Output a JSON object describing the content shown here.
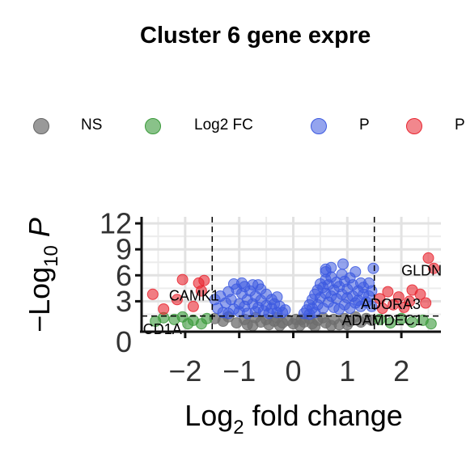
{
  "chart_data": {
    "type": "scatter",
    "title": "Cluster 6 gene expre",
    "xlabel": "Log2 fold change",
    "ylabel": "-Log10 P",
    "xlim": [
      -2.8,
      2.7
    ],
    "ylim": [
      0,
      13
    ],
    "x_ticks": [
      -2,
      -1,
      0,
      1,
      2
    ],
    "x_tick_labels": [
      "-2",
      "-1",
      "0",
      "1",
      "2"
    ],
    "y_ticks": [
      3,
      6,
      9,
      12
    ],
    "y_tick_labels": [
      "3",
      "6",
      "9",
      "12"
    ],
    "y_extra_label": "0",
    "grid": true,
    "legend_position": "top",
    "fc_cutoff": 1.5,
    "p_cutoff": 1.3,
    "legend": [
      {
        "key": "NS",
        "label": "NS",
        "color": "#6e6e6e"
      },
      {
        "key": "FC",
        "label": "Log2 FC",
        "color": "#3a9a3a"
      },
      {
        "key": "P",
        "label": "P",
        "color": "#3d5ae0"
      },
      {
        "key": "PFC",
        "label": "P",
        "color": "#e8252f"
      }
    ],
    "series": [
      {
        "key": "NS",
        "color": "#6e6e6e",
        "points": [
          [
            -1.45,
            1.0
          ],
          [
            -1.3,
            0.7
          ],
          [
            -1.2,
            1.2
          ],
          [
            -1.05,
            0.5
          ],
          [
            -0.9,
            0.9
          ],
          [
            -0.85,
            0.3
          ],
          [
            -0.7,
            1.1
          ],
          [
            -0.6,
            0.6
          ],
          [
            -0.5,
            0.9
          ],
          [
            -0.45,
            0.3
          ],
          [
            -0.35,
            0.7
          ],
          [
            -0.3,
            1.1
          ],
          [
            -0.2,
            0.5
          ],
          [
            -0.1,
            0.8
          ],
          [
            0.0,
            0.4
          ],
          [
            0.05,
            0.9
          ],
          [
            0.12,
            0.2
          ],
          [
            0.2,
            0.6
          ],
          [
            0.3,
            1.0
          ],
          [
            0.35,
            0.4
          ],
          [
            0.45,
            0.8
          ],
          [
            0.55,
            1.1
          ],
          [
            0.6,
            0.5
          ],
          [
            0.75,
            0.9
          ],
          [
            0.85,
            0.3
          ],
          [
            0.95,
            1.0
          ],
          [
            1.05,
            0.7
          ],
          [
            1.15,
            1.2
          ],
          [
            1.25,
            0.6
          ],
          [
            1.35,
            1.0
          ],
          [
            1.45,
            0.8
          ],
          [
            -0.75,
            0.2
          ],
          [
            -0.25,
            0.2
          ],
          [
            0.15,
            0.9
          ],
          [
            0.4,
            0.1
          ],
          [
            0.7,
            0.2
          ],
          [
            1.0,
            0.3
          ]
        ]
      },
      {
        "key": "FC",
        "color": "#3a9a3a",
        "points": [
          [
            -2.55,
            0.7
          ],
          [
            -2.4,
            1.1
          ],
          [
            -2.2,
            0.9
          ],
          [
            -2.05,
            1.2
          ],
          [
            -1.95,
            0.4
          ],
          [
            -1.85,
            0.8
          ],
          [
            -1.7,
            0.4
          ],
          [
            -1.6,
            1.0
          ],
          [
            1.6,
            0.9
          ],
          [
            1.8,
            0.5
          ],
          [
            2.0,
            1.0
          ],
          [
            2.2,
            0.6
          ],
          [
            2.4,
            0.8
          ],
          [
            2.55,
            0.4
          ]
        ]
      },
      {
        "key": "P",
        "color": "#3d5ae0",
        "points": [
          [
            -1.45,
            3.2
          ],
          [
            -1.4,
            2.2
          ],
          [
            -1.35,
            3.6
          ],
          [
            -1.3,
            1.7
          ],
          [
            -1.25,
            2.8
          ],
          [
            -1.2,
            4.1
          ],
          [
            -1.2,
            1.6
          ],
          [
            -1.15,
            3.2
          ],
          [
            -1.1,
            2.1
          ],
          [
            -1.05,
            4.4
          ],
          [
            -1.0,
            2.7
          ],
          [
            -1.0,
            1.8
          ],
          [
            -0.95,
            3.9
          ],
          [
            -0.9,
            2.4
          ],
          [
            -0.9,
            4.7
          ],
          [
            -0.85,
            3.2
          ],
          [
            -0.85,
            1.6
          ],
          [
            -0.8,
            4.2
          ],
          [
            -0.75,
            2.7
          ],
          [
            -0.75,
            4.9
          ],
          [
            -0.7,
            3.6
          ],
          [
            -0.7,
            1.8
          ],
          [
            -0.65,
            2.3
          ],
          [
            -0.6,
            4.4
          ],
          [
            -0.6,
            3.1
          ],
          [
            -0.55,
            1.9
          ],
          [
            -0.5,
            3.8
          ],
          [
            -0.5,
            2.5
          ],
          [
            -0.45,
            1.6
          ],
          [
            -0.4,
            3.2
          ],
          [
            -0.4,
            2.2
          ],
          [
            -0.35,
            2.7
          ],
          [
            -0.3,
            1.7
          ],
          [
            -0.3,
            3.5
          ],
          [
            -0.25,
            2.4
          ],
          [
            -0.2,
            1.7
          ],
          [
            -0.15,
            2.0
          ],
          [
            -1.1,
            5.0
          ],
          [
            -0.95,
            5.1
          ],
          [
            -0.65,
            4.9
          ],
          [
            0.2,
            1.6
          ],
          [
            0.25,
            2.0
          ],
          [
            0.3,
            2.6
          ],
          [
            0.3,
            1.5
          ],
          [
            0.35,
            3.2
          ],
          [
            0.35,
            2.2
          ],
          [
            0.4,
            3.8
          ],
          [
            0.4,
            1.7
          ],
          [
            0.45,
            4.3
          ],
          [
            0.45,
            2.6
          ],
          [
            0.5,
            3.4
          ],
          [
            0.5,
            5.0
          ],
          [
            0.55,
            2.2
          ],
          [
            0.55,
            4.6
          ],
          [
            0.6,
            3.9
          ],
          [
            0.6,
            5.5
          ],
          [
            0.6,
            6.4
          ],
          [
            0.65,
            2.9
          ],
          [
            0.65,
            4.9
          ],
          [
            0.7,
            3.6
          ],
          [
            0.7,
            5.8
          ],
          [
            0.75,
            2.3
          ],
          [
            0.75,
            4.3
          ],
          [
            0.8,
            5.2
          ],
          [
            0.8,
            3.3
          ],
          [
            0.85,
            2.1
          ],
          [
            0.85,
            4.7
          ],
          [
            0.9,
            3.8
          ],
          [
            0.9,
            6.1
          ],
          [
            0.95,
            2.6
          ],
          [
            0.95,
            5.3
          ],
          [
            1.0,
            3.4
          ],
          [
            1.0,
            4.4
          ],
          [
            1.05,
            2.2
          ],
          [
            1.05,
            5.7
          ],
          [
            1.1,
            3.6
          ],
          [
            1.1,
            4.9
          ],
          [
            1.15,
            2.8
          ],
          [
            1.15,
            6.4
          ],
          [
            1.2,
            4.2
          ],
          [
            1.2,
            3.1
          ],
          [
            1.25,
            2.4
          ],
          [
            1.25,
            5.1
          ],
          [
            1.3,
            3.8
          ],
          [
            1.3,
            4.6
          ],
          [
            1.35,
            2.9
          ],
          [
            1.4,
            3.6
          ],
          [
            1.4,
            5.1
          ],
          [
            1.45,
            2.4
          ],
          [
            1.45,
            4.2
          ],
          [
            0.92,
            7.3
          ],
          [
            1.48,
            6.8
          ],
          [
            0.6,
            6.7
          ],
          [
            0.7,
            6.9
          ]
        ]
      },
      {
        "key": "PFC",
        "color": "#e8252f",
        "points": [
          [
            -2.6,
            3.8
          ],
          [
            -2.15,
            3.2
          ],
          [
            -2.05,
            5.5
          ],
          [
            -1.75,
            5.1
          ],
          [
            -1.65,
            5.4
          ],
          [
            -1.7,
            4.2
          ],
          [
            -1.85,
            2.4
          ],
          [
            -2.4,
            2.1
          ],
          [
            1.6,
            3.3
          ],
          [
            1.75,
            4.1
          ],
          [
            1.85,
            2.6
          ],
          [
            1.95,
            3.5
          ],
          [
            2.05,
            2.3
          ],
          [
            2.2,
            4.3
          ],
          [
            2.35,
            3.8
          ],
          [
            2.45,
            2.8
          ],
          [
            2.5,
            8.0
          ],
          [
            2.6,
            6.8
          ],
          [
            1.65,
            2.2
          ],
          [
            2.15,
            3.0
          ]
        ]
      }
    ],
    "labels": [
      {
        "text": "GLDN",
        "x": 2.0,
        "y": 6.0
      },
      {
        "text": "CAMK1",
        "x": -2.3,
        "y": 3.1
      },
      {
        "text": "ADORA3",
        "x": 1.25,
        "y": 2.1
      },
      {
        "text": "ADAMDEC1",
        "x": 0.9,
        "y": 0.25
      },
      {
        "text": "CD1A",
        "x": -2.78,
        "y": -0.8
      }
    ]
  }
}
